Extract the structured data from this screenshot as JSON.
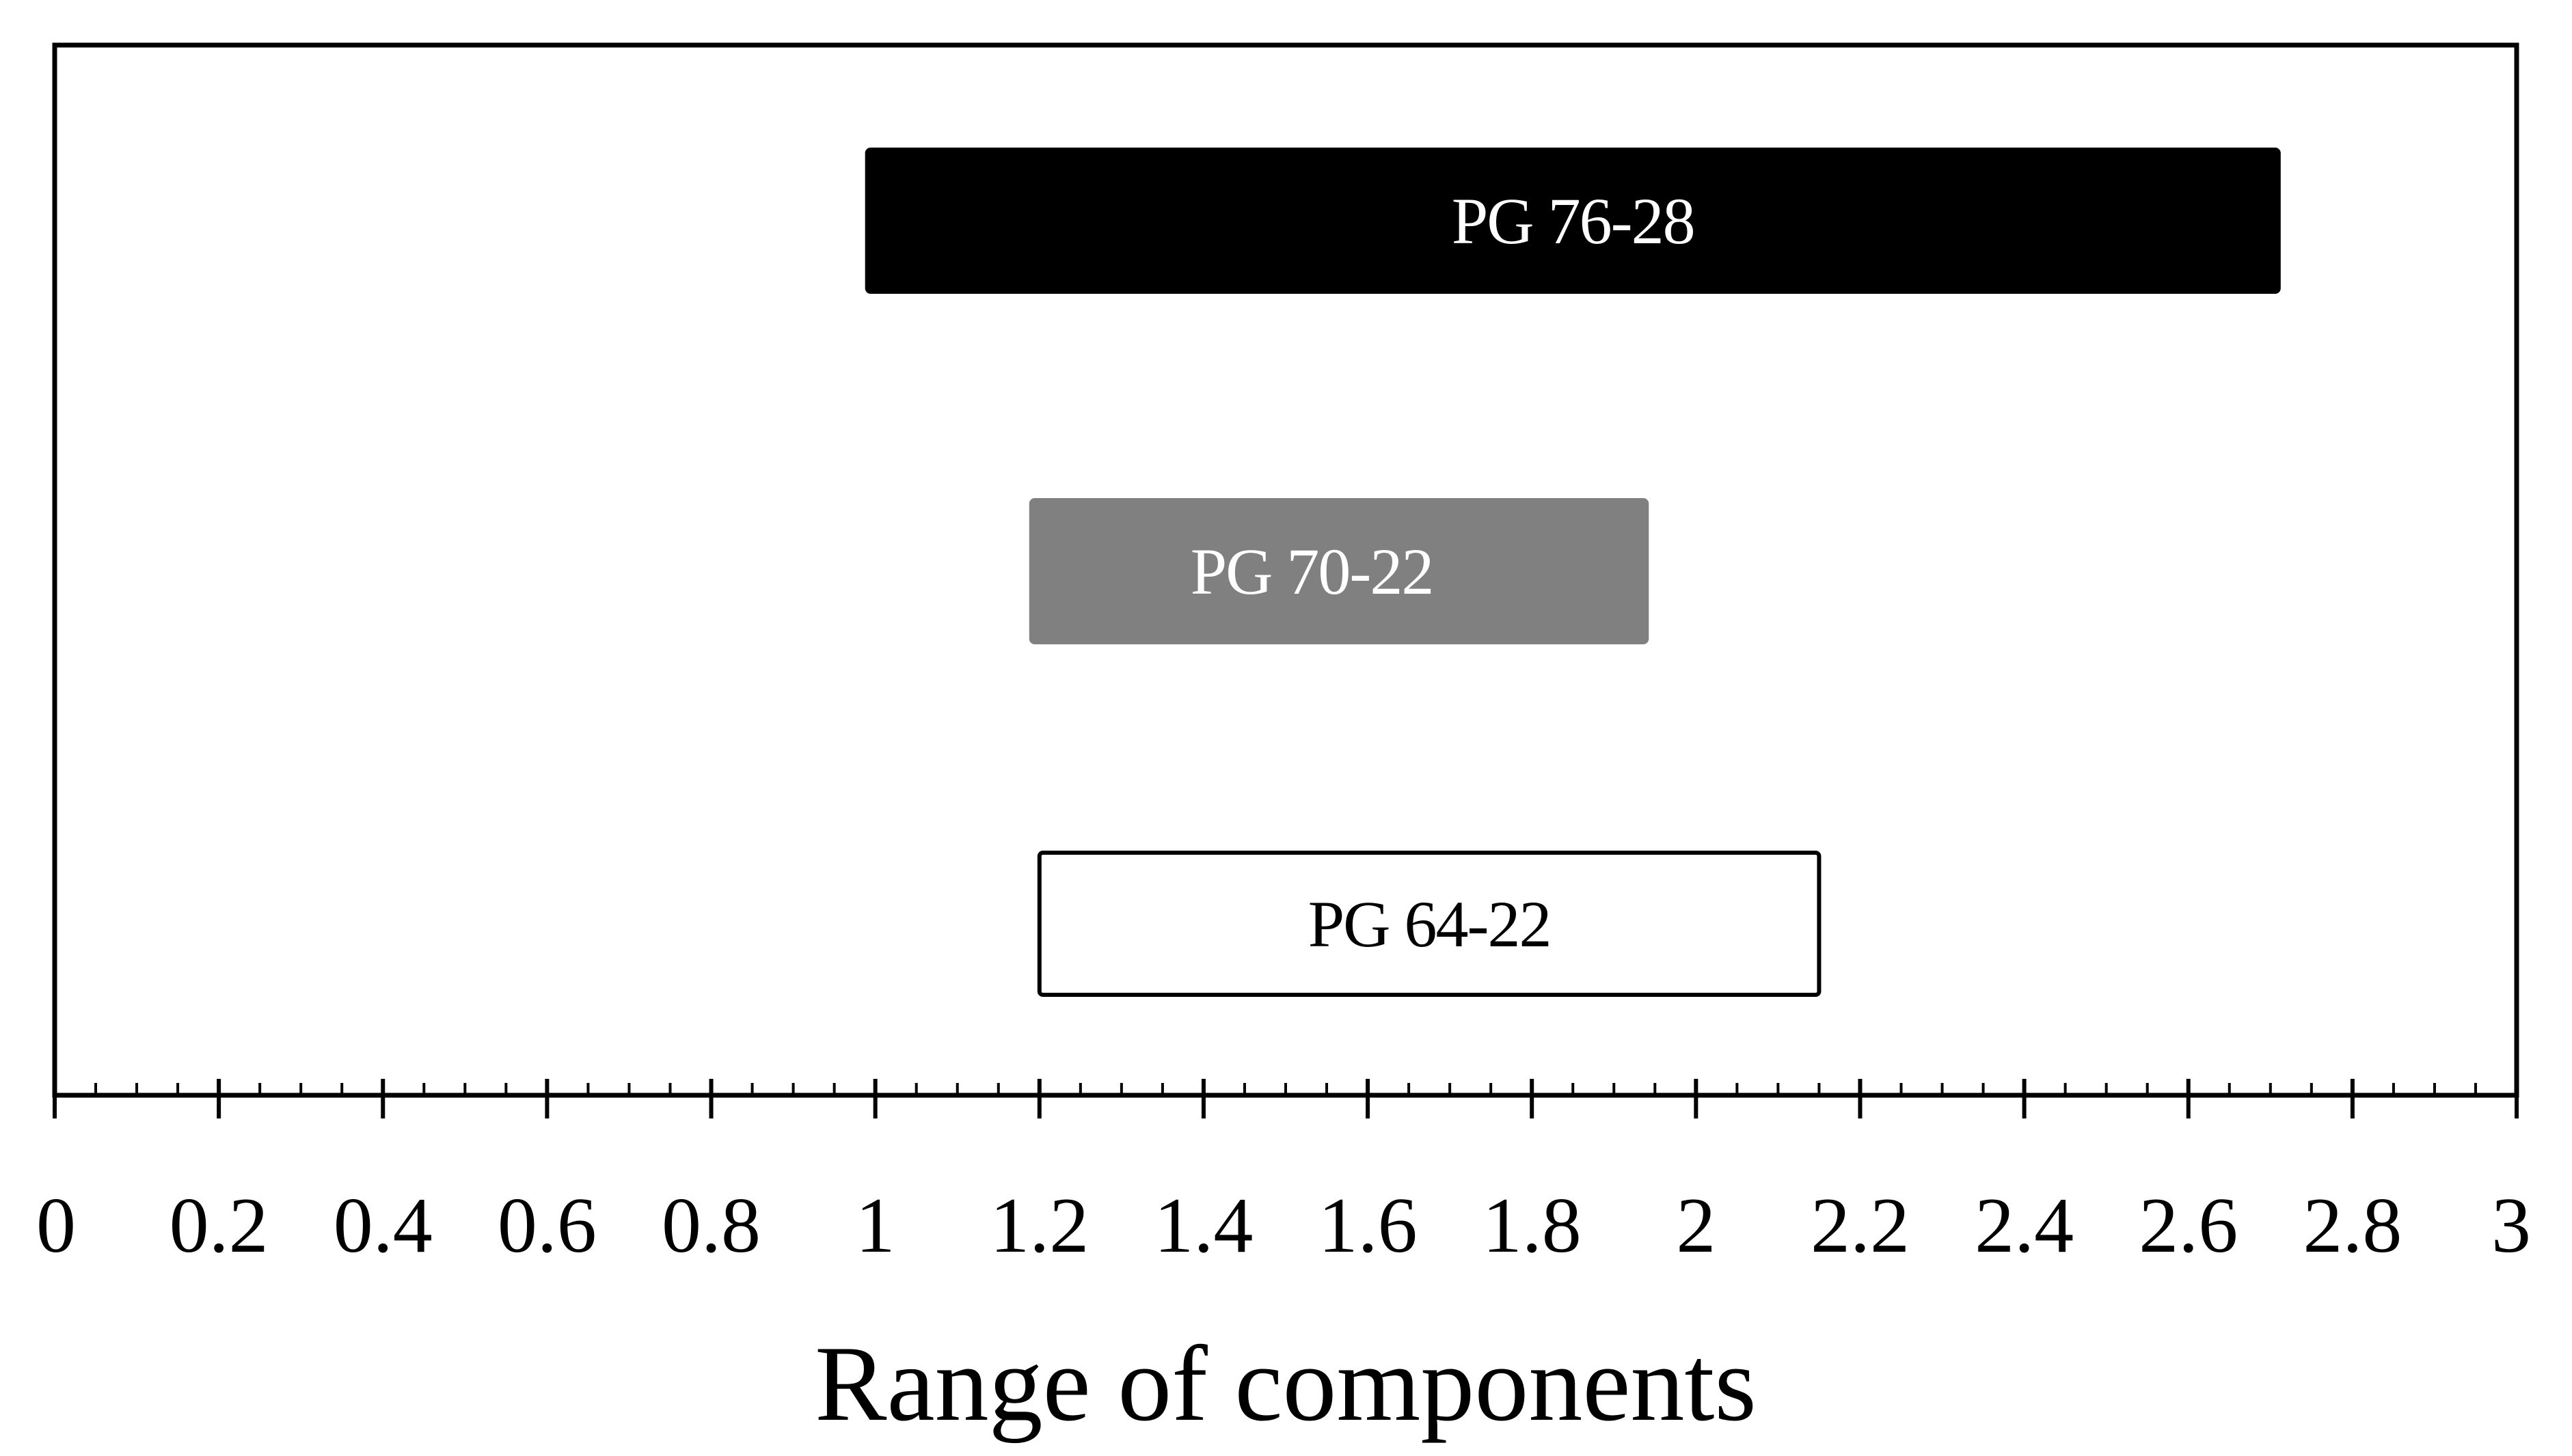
{
  "chart_data": {
    "type": "bar",
    "orientation": "horizontal-range",
    "title": "",
    "xlabel": "Range of components",
    "ylabel": "",
    "xlim": [
      0,
      3
    ],
    "major_tick_step": 0.2,
    "minor_tick_step": 0.05,
    "grid": false,
    "legend": "none",
    "ticks": [
      "0",
      "0.2",
      "0.4",
      "0.6",
      "0.8",
      "1",
      "1.2",
      "1.4",
      "1.6",
      "1.8",
      "2",
      "2.2",
      "2.4",
      "2.6",
      "2.8",
      "3"
    ],
    "series": [
      {
        "label": "PG 76-28",
        "start": 0.99,
        "end": 2.71,
        "fill": "#000000",
        "text_color": "#ffffff",
        "border": "#000000"
      },
      {
        "label": "PG 70-22",
        "start": 1.19,
        "end": 1.94,
        "fill": "#808080",
        "text_color": "#ffffff",
        "border": "#808080"
      },
      {
        "label": "PG 64-22",
        "start": 1.2,
        "end": 2.15,
        "fill": "#ffffff",
        "text_color": "#000000",
        "border": "#000000"
      }
    ]
  }
}
